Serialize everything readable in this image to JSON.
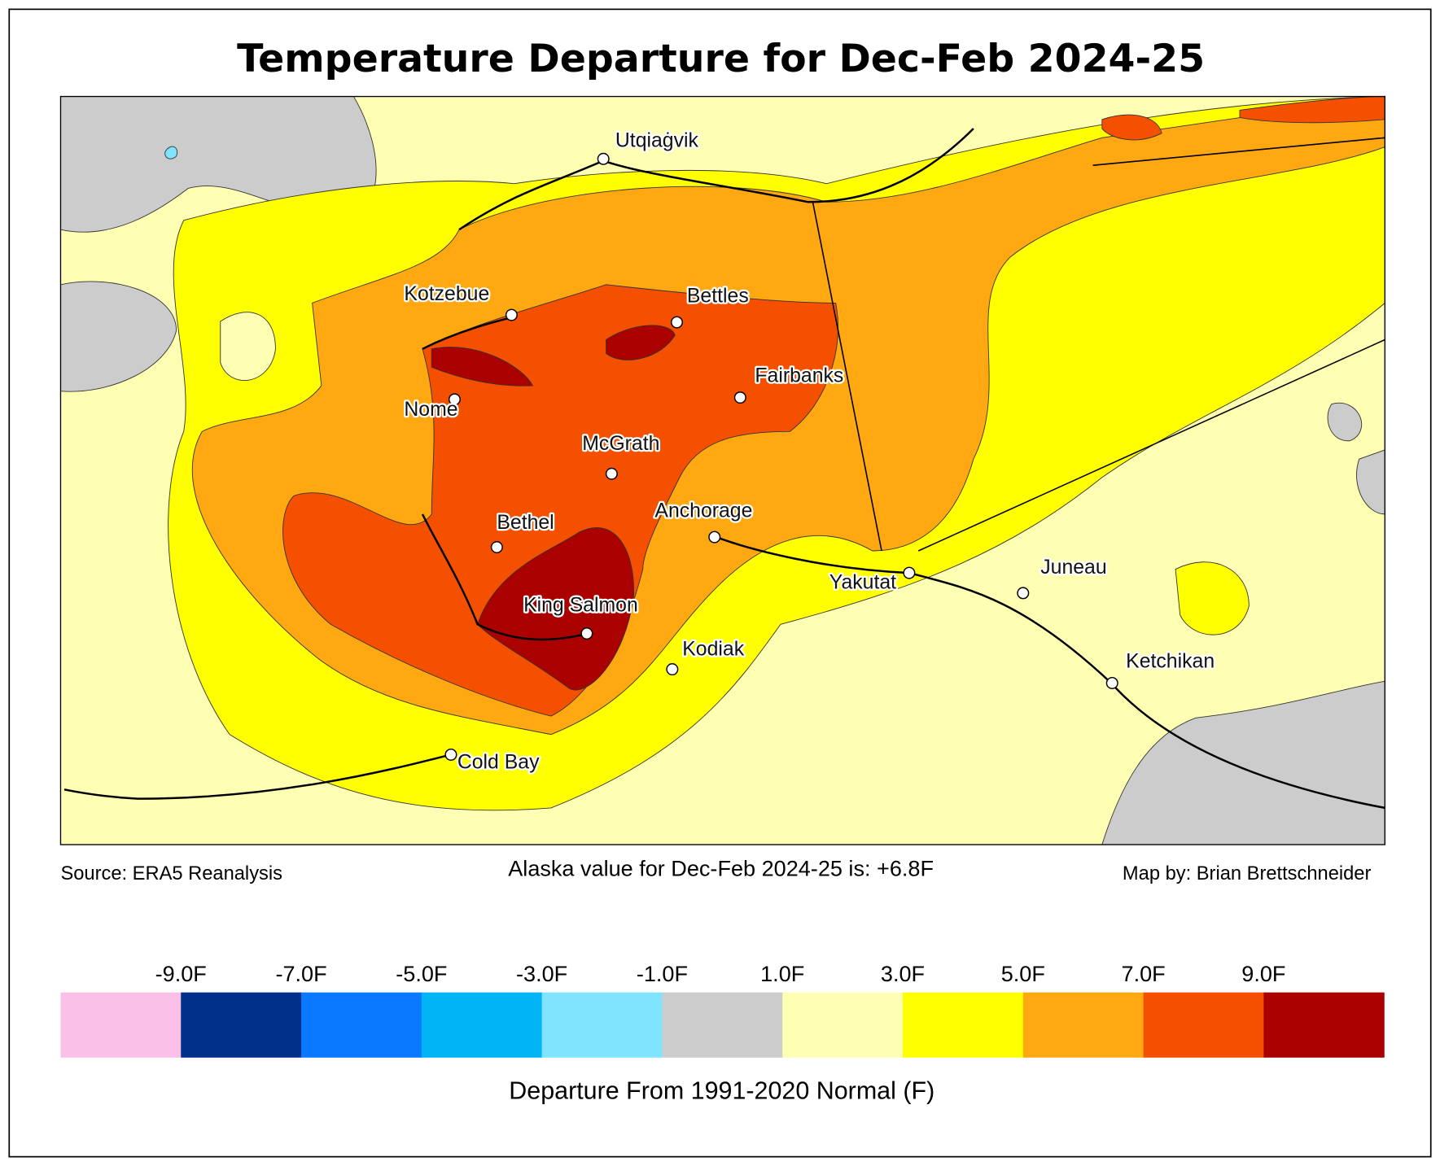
{
  "title": "Temperature Departure for Dec-Feb 2024-25",
  "cities": [
    "Utqiaġvik",
    "Kotzebue",
    "Bettles",
    "Fairbanks",
    "Nome",
    "McGrath",
    "Anchorage",
    "Bethel",
    "Yakutat",
    "Juneau",
    "King Salmon",
    "Kodiak",
    "Ketchikan",
    "Cold Bay"
  ],
  "footer": {
    "source": "Source: ERA5 Reanalysis",
    "summary": "Alaska value for Dec-Feb 2024-25 is: +6.8F",
    "credit": "Map by: Brian Brettschneider"
  },
  "colorbar": {
    "xlim": [
      -11,
      11
    ],
    "ticks": [
      {
        "value": -9,
        "label": "-9.0F"
      },
      {
        "value": -7,
        "label": "-7.0F"
      },
      {
        "value": -5,
        "label": "-5.0F"
      },
      {
        "value": -3,
        "label": "-3.0F"
      },
      {
        "value": -1,
        "label": "-1.0F"
      },
      {
        "value": 1,
        "label": "1.0F"
      },
      {
        "value": 3,
        "label": "3.0F"
      },
      {
        "value": 5,
        "label": "5.0F"
      },
      {
        "value": 7,
        "label": "7.0F"
      },
      {
        "value": 9,
        "label": "9.0F"
      }
    ],
    "colors": [
      "#fbc0e8",
      "#00308a",
      "#0a78ff",
      "#00b4f5",
      "#80e4ff",
      "#cccccc",
      "#ffffb3",
      "#ffff00",
      "#ffa812",
      "#f55000",
      "#aa0000"
    ],
    "label": "Departure From 1991-2020 Normal (F)"
  }
}
